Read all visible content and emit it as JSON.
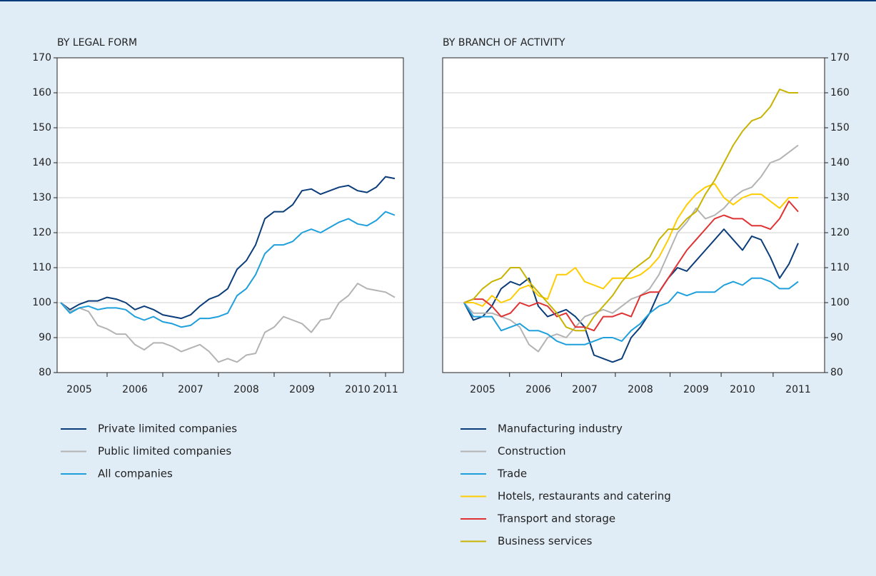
{
  "chart_data": [
    {
      "type": "line",
      "title": "BY LEGAL FORM",
      "yaxis_side": "left",
      "grid": true,
      "ylim": [
        80,
        170
      ],
      "yticks": [
        80,
        90,
        100,
        110,
        120,
        130,
        140,
        150,
        160,
        170
      ],
      "categories": [
        null,
        null,
        "2005",
        null,
        null,
        null,
        null,
        null,
        "2006",
        null,
        null,
        null,
        null,
        null,
        "2007",
        null,
        null,
        null,
        null,
        null,
        "2008",
        null,
        null,
        null,
        null,
        null,
        "2009",
        null,
        null,
        null,
        null,
        null,
        "2010",
        null,
        null,
        "2011",
        null
      ],
      "series": [
        {
          "name": "Private limited companies",
          "color": "#0b3d7a",
          "values": [
            100,
            98,
            99.5,
            100.5,
            100.5,
            101.5,
            101,
            100,
            98,
            99,
            98,
            96.5,
            96,
            95.5,
            96.5,
            99,
            101,
            102,
            104,
            109.5,
            112,
            116.5,
            124,
            126,
            126,
            128,
            132,
            132.5,
            131,
            132,
            133,
            133.5,
            132,
            131.5,
            133,
            136,
            135.5
          ]
        },
        {
          "name": "Public limited companies",
          "color": "#b3b3b3",
          "values": [
            100,
            97.5,
            98.5,
            97.5,
            93.5,
            92.5,
            91,
            91,
            88,
            86.5,
            88.5,
            88.5,
            87.5,
            86,
            87,
            88,
            86,
            83,
            84,
            83,
            85,
            85.5,
            91.5,
            93,
            96,
            95,
            94,
            91.5,
            95,
            95.5,
            100,
            102,
            105.5,
            104,
            103.5,
            103,
            101.5
          ]
        },
        {
          "name": "All companies",
          "color": "#1fa0dc",
          "values": [
            100,
            97,
            98.5,
            99,
            98,
            98.5,
            98.5,
            98,
            96,
            95,
            96,
            94.5,
            94,
            93,
            93.5,
            95.5,
            95.5,
            96,
            97,
            102,
            104,
            108,
            114,
            116.5,
            116.5,
            117.5,
            120,
            121,
            120,
            121.5,
            123,
            124,
            122.5,
            122,
            123.5,
            126,
            125
          ]
        }
      ]
    },
    {
      "type": "line",
      "title": "BY BRANCH OF ACTIVITY",
      "yaxis_side": "right",
      "grid": true,
      "ylim": [
        80,
        170
      ],
      "yticks": [
        80,
        90,
        100,
        110,
        120,
        130,
        140,
        150,
        160,
        170
      ],
      "categories": [
        null,
        null,
        "2005",
        null,
        null,
        null,
        null,
        null,
        "2006",
        null,
        null,
        null,
        null,
        "2007",
        null,
        null,
        null,
        null,
        null,
        "2008",
        null,
        null,
        null,
        null,
        null,
        "2009",
        null,
        null,
        null,
        null,
        "2010",
        null,
        null,
        null,
        null,
        null,
        "2011"
      ],
      "series": [
        {
          "name": "Manufacturing industry",
          "color": "#0b3d7a",
          "values": [
            100,
            95,
            96,
            99,
            104,
            106,
            105,
            107,
            99,
            96,
            97,
            98,
            96,
            93,
            85,
            84,
            83,
            84,
            90,
            93,
            97,
            103,
            107,
            110,
            109,
            112,
            115,
            118,
            121,
            118,
            115,
            119,
            118,
            113,
            107,
            111,
            117
          ]
        },
        {
          "name": "Construction",
          "color": "#b3b3b3",
          "values": [
            100,
            97,
            97,
            97,
            96,
            95,
            93,
            88,
            86,
            90,
            91,
            90,
            93,
            96,
            97,
            98,
            97,
            99,
            101,
            102,
            104,
            108,
            114,
            120,
            123,
            127,
            124,
            125,
            127,
            130,
            132,
            133,
            136,
            140,
            141,
            143,
            145
          ]
        },
        {
          "name": "Trade",
          "color": "#1fa0dc",
          "values": [
            100,
            96,
            96,
            96,
            92,
            93,
            94,
            92,
            92,
            91,
            89,
            88,
            88,
            88,
            89,
            90,
            90,
            89,
            92,
            94,
            97,
            99,
            100,
            103,
            102,
            103,
            103,
            103,
            105,
            106,
            105,
            107,
            107,
            106,
            104,
            104,
            106
          ]
        },
        {
          "name": "Hotels, restaurants and catering",
          "color": "#ffcc00",
          "values": [
            100,
            100,
            99,
            102,
            100,
            101,
            104,
            105,
            102,
            101,
            108,
            108,
            110,
            106,
            105,
            104,
            107,
            107,
            107,
            108,
            110,
            113,
            118,
            124,
            128,
            131,
            133,
            134,
            130,
            128,
            130,
            131,
            131,
            129,
            127,
            130,
            130
          ]
        },
        {
          "name": "Transport and storage",
          "color": "#e03232",
          "values": [
            100,
            101,
            101,
            99,
            96,
            97,
            100,
            99,
            100,
            99,
            96,
            97,
            93,
            93,
            92,
            96,
            96,
            97,
            96,
            102,
            103,
            103,
            107,
            111,
            115,
            118,
            121,
            124,
            125,
            124,
            124,
            122,
            122,
            121,
            124,
            129,
            126
          ]
        },
        {
          "name": "Business services",
          "color": "#c8b400",
          "values": [
            100,
            101,
            104,
            106,
            107,
            110,
            110,
            106,
            103,
            100,
            97,
            93,
            92,
            92,
            96,
            99,
            102,
            106,
            109,
            111,
            113,
            118,
            121,
            121,
            124,
            126,
            131,
            135,
            140,
            145,
            149,
            152,
            153,
            156,
            161,
            160,
            160
          ]
        }
      ]
    }
  ]
}
